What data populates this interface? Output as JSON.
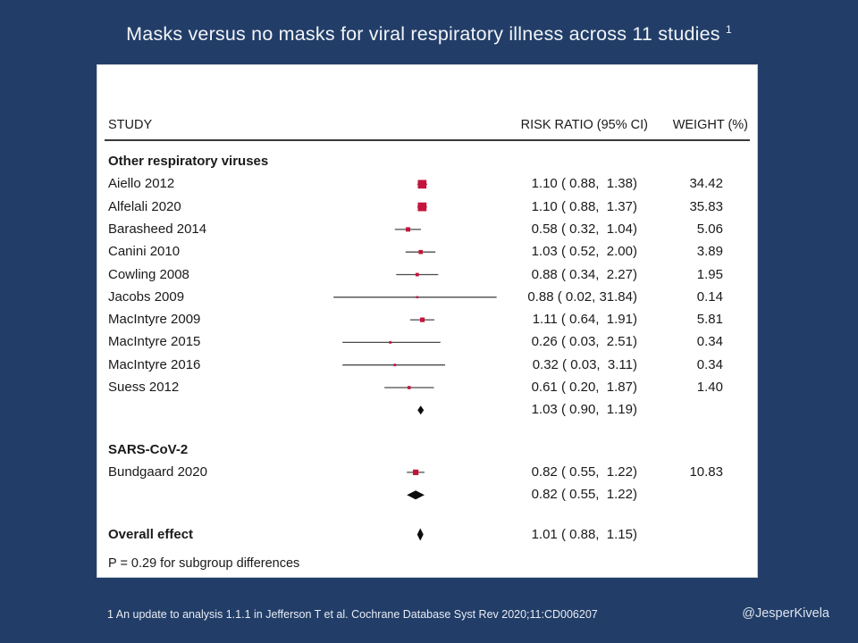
{
  "title": {
    "text": "Masks versus no masks for viral respiratory illness across 11 studies",
    "superscript": "1"
  },
  "footer": {
    "footnote": "1 An update to analysis 1.1.1 in Jefferson T et al. Cochrane Database Syst Rev 2020;11:CD006207",
    "handle": "@JesperKivela"
  },
  "colors": {
    "background": "#223e68",
    "panel": "#ffffff",
    "effect_square": "#c5143c",
    "pooled_diamond": "#0d0d0d",
    "ci_line": "#4a4a4a",
    "title_text": "#f2f4f8"
  },
  "chart_data": {
    "type": "forest",
    "title": "Masks versus no masks for viral respiratory illness across 11 studies",
    "columns": {
      "study": "STUDY",
      "risk_ratio": "RISK RATIO (95% CI)",
      "weight": "WEIGHT (%)"
    },
    "x_scale": {
      "type": "log10",
      "null_value": 1,
      "approx_range": [
        0.02,
        31.84
      ],
      "axis_shown": false,
      "grid": false
    },
    "note": "P = 0.29 for subgroup differences",
    "rows": [
      {
        "type": "subgroup",
        "label": "Other respiratory viruses"
      },
      {
        "type": "study",
        "label": "Aiello 2012",
        "rr": 1.1,
        "lo": 0.88,
        "hi": 1.38,
        "weight": 34.42,
        "rr_text": "1.10 ( 0.88,  1.38)",
        "weight_text": "34.42"
      },
      {
        "type": "study",
        "label": "Alfelali 2020",
        "rr": 1.1,
        "lo": 0.88,
        "hi": 1.37,
        "weight": 35.83,
        "rr_text": "1.10 ( 0.88,  1.37)",
        "weight_text": "35.83"
      },
      {
        "type": "study",
        "label": "Barasheed 2014",
        "rr": 0.58,
        "lo": 0.32,
        "hi": 1.04,
        "weight": 5.06,
        "rr_text": "0.58 ( 0.32,  1.04)",
        "weight_text": "5.06"
      },
      {
        "type": "study",
        "label": "Canini 2010",
        "rr": 1.03,
        "lo": 0.52,
        "hi": 2.0,
        "weight": 3.89,
        "rr_text": "1.03 ( 0.52,  2.00)",
        "weight_text": "3.89"
      },
      {
        "type": "study",
        "label": "Cowling 2008",
        "rr": 0.88,
        "lo": 0.34,
        "hi": 2.27,
        "weight": 1.95,
        "rr_text": "0.88 ( 0.34,  2.27)",
        "weight_text": "1.95"
      },
      {
        "type": "study",
        "label": "Jacobs 2009",
        "rr": 0.88,
        "lo": 0.02,
        "hi": 31.84,
        "weight": 0.14,
        "rr_text": "0.88 ( 0.02, 31.84)",
        "weight_text": "0.14"
      },
      {
        "type": "study",
        "label": "MacIntyre 2009",
        "rr": 1.11,
        "lo": 0.64,
        "hi": 1.91,
        "weight": 5.81,
        "rr_text": "1.11 ( 0.64,  1.91)",
        "weight_text": "5.81"
      },
      {
        "type": "study",
        "label": "MacIntyre 2015",
        "rr": 0.26,
        "lo": 0.03,
        "hi": 2.51,
        "weight": 0.34,
        "rr_text": "0.26 ( 0.03,  2.51)",
        "weight_text": "0.34"
      },
      {
        "type": "study",
        "label": "MacIntyre 2016",
        "rr": 0.32,
        "lo": 0.03,
        "hi": 3.11,
        "weight": 0.34,
        "rr_text": "0.32 ( 0.03,  3.11)",
        "weight_text": "0.34"
      },
      {
        "type": "study",
        "label": "Suess 2012",
        "rr": 0.61,
        "lo": 0.2,
        "hi": 1.87,
        "weight": 1.4,
        "rr_text": "0.61 ( 0.20,  1.87)",
        "weight_text": "1.40"
      },
      {
        "type": "subtotal",
        "label": "",
        "rr": 1.03,
        "lo": 0.9,
        "hi": 1.19,
        "rr_text": "1.03 ( 0.90,  1.19)"
      },
      {
        "type": "spacer"
      },
      {
        "type": "subgroup",
        "label": "SARS-CoV-2"
      },
      {
        "type": "study",
        "label": "Bundgaard 2020",
        "rr": 0.82,
        "lo": 0.55,
        "hi": 1.22,
        "weight": 10.83,
        "rr_text": "0.82 ( 0.55,  1.22)",
        "weight_text": "10.83"
      },
      {
        "type": "subtotal",
        "label": "",
        "rr": 0.82,
        "lo": 0.55,
        "hi": 1.22,
        "rr_text": "0.82 ( 0.55,  1.22)"
      },
      {
        "type": "spacer"
      },
      {
        "type": "overall",
        "label": "Overall effect",
        "rr": 1.01,
        "lo": 0.88,
        "hi": 1.15,
        "rr_text": "1.01 ( 0.88,  1.15)"
      }
    ]
  }
}
